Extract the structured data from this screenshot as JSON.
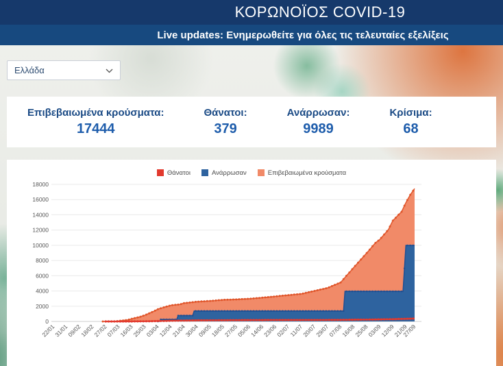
{
  "header": {
    "title": "ΚΟΡΩΝΟΪΟΣ COVID-19",
    "live_updates": "Live updates: Ενημερωθείτε για όλες τις τελευταίες εξελίξεις"
  },
  "filters": {
    "country": "Ελλάδα"
  },
  "stats": {
    "confirmed": {
      "label": "Επιβεβαιωμένα κρούσματα:",
      "value": "17444"
    },
    "deaths": {
      "label": "Θάνατοι:",
      "value": "379"
    },
    "recovered": {
      "label": "Ανάρρωσαν:",
      "value": "9989"
    },
    "critical": {
      "label": "Κρίσιμα:",
      "value": "68"
    }
  },
  "colors": {
    "header_navy": "#16396b",
    "banner_blue": "#17497f",
    "stat_navy": "#1a4a85",
    "deaths_red": "#e23a2e",
    "recovered_blue": "#2e639f",
    "confirmed_salmon": "#f18a68"
  },
  "chart_data": {
    "type": "area",
    "title": "",
    "xlabel": "",
    "ylabel": "",
    "ylim": [
      0,
      18000
    ],
    "y_tick_step": 2000,
    "legend_position": "top",
    "grid": "horizontal",
    "x_tick_labels": [
      "22/01",
      "31/01",
      "09/02",
      "18/02",
      "27/02",
      "07/03",
      "16/03",
      "25/03",
      "03/04",
      "12/04",
      "21/04",
      "30/04",
      "09/05",
      "18/05",
      "27/05",
      "05/06",
      "14/06",
      "23/06",
      "02/07",
      "11/07",
      "20/07",
      "29/07",
      "07/08",
      "16/08",
      "25/08",
      "03/09",
      "12/09",
      "21/09",
      "27/09"
    ],
    "legend": [
      {
        "label": "Θάνατοι",
        "color": "#e23a2e"
      },
      {
        "label": "Ανάρρωσαν",
        "color": "#2e639f"
      },
      {
        "label": "Επιβεβαιωμένα κρούσματα",
        "color": "#f18a68"
      }
    ],
    "series": [
      {
        "name": "Επιβεβαιωμένα κρούσματα",
        "line": "#e0552a",
        "fill": "#f18a68",
        "area": true,
        "width": 1.5,
        "dot": 1.5,
        "from": "25/02",
        "points": [
          [
            "22/01",
            0
          ],
          [
            "25/02",
            0
          ],
          [
            "27/02",
            3
          ],
          [
            "04/03",
            9
          ],
          [
            "07/03",
            66
          ],
          [
            "13/03",
            190
          ],
          [
            "16/03",
            352
          ],
          [
            "22/03",
            624
          ],
          [
            "25/03",
            821
          ],
          [
            "31/03",
            1314
          ],
          [
            "03/04",
            1613
          ],
          [
            "09/04",
            1955
          ],
          [
            "12/04",
            2114
          ],
          [
            "18/04",
            2235
          ],
          [
            "21/04",
            2401
          ],
          [
            "30/04",
            2591
          ],
          [
            "09/05",
            2691
          ],
          [
            "18/05",
            2834
          ],
          [
            "27/05",
            2892
          ],
          [
            "05/06",
            2980
          ],
          [
            "14/06",
            3121
          ],
          [
            "23/06",
            3287
          ],
          [
            "02/07",
            3458
          ],
          [
            "11/07",
            3622
          ],
          [
            "20/07",
            4007
          ],
          [
            "29/07",
            4401
          ],
          [
            "07/08",
            5123
          ],
          [
            "16/08",
            7075
          ],
          [
            "25/08",
            8987
          ],
          [
            "31/08",
            10317
          ],
          [
            "03/09",
            10757
          ],
          [
            "09/09",
            12080
          ],
          [
            "12/09",
            13240
          ],
          [
            "18/09",
            14400
          ],
          [
            "21/09",
            15595
          ],
          [
            "24/09",
            16627
          ],
          [
            "27/09",
            17444
          ]
        ]
      },
      {
        "name": "Ανάρρωσαν",
        "line": "#1f4f93",
        "fill": "#2e639f",
        "area": true,
        "width": 1.5,
        "dot": 1.3,
        "from": "03/04",
        "points": [
          [
            "22/01",
            0
          ],
          [
            "04/04",
            0
          ],
          [
            "05/04",
            269
          ],
          [
            "16/04",
            269
          ],
          [
            "17/04",
            778
          ],
          [
            "27/04",
            778
          ],
          [
            "28/04",
            1374
          ],
          [
            "09/08",
            1374
          ],
          [
            "10/08",
            3957
          ],
          [
            "19/09",
            3957
          ],
          [
            "21/09",
            9989
          ],
          [
            "27/09",
            9989
          ]
        ]
      },
      {
        "name": "Θάνατοι",
        "line": "#e23a2e",
        "fill": "#e23a2e",
        "area": false,
        "width": 2.2,
        "dot": 1.6,
        "from": "27/02",
        "points": [
          [
            "22/01",
            0
          ],
          [
            "11/03",
            0
          ],
          [
            "16/03",
            4
          ],
          [
            "25/03",
            20
          ],
          [
            "03/04",
            53
          ],
          [
            "12/04",
            98
          ],
          [
            "21/04",
            121
          ],
          [
            "30/04",
            140
          ],
          [
            "09/05",
            150
          ],
          [
            "18/05",
            162
          ],
          [
            "27/05",
            173
          ],
          [
            "05/06",
            180
          ],
          [
            "14/06",
            183
          ],
          [
            "23/06",
            190
          ],
          [
            "02/07",
            192
          ],
          [
            "11/07",
            193
          ],
          [
            "20/07",
            198
          ],
          [
            "29/07",
            203
          ],
          [
            "07/08",
            210
          ],
          [
            "16/08",
            228
          ],
          [
            "25/08",
            243
          ],
          [
            "03/09",
            271
          ],
          [
            "12/09",
            300
          ],
          [
            "21/09",
            344
          ],
          [
            "27/09",
            379
          ]
        ]
      }
    ]
  }
}
